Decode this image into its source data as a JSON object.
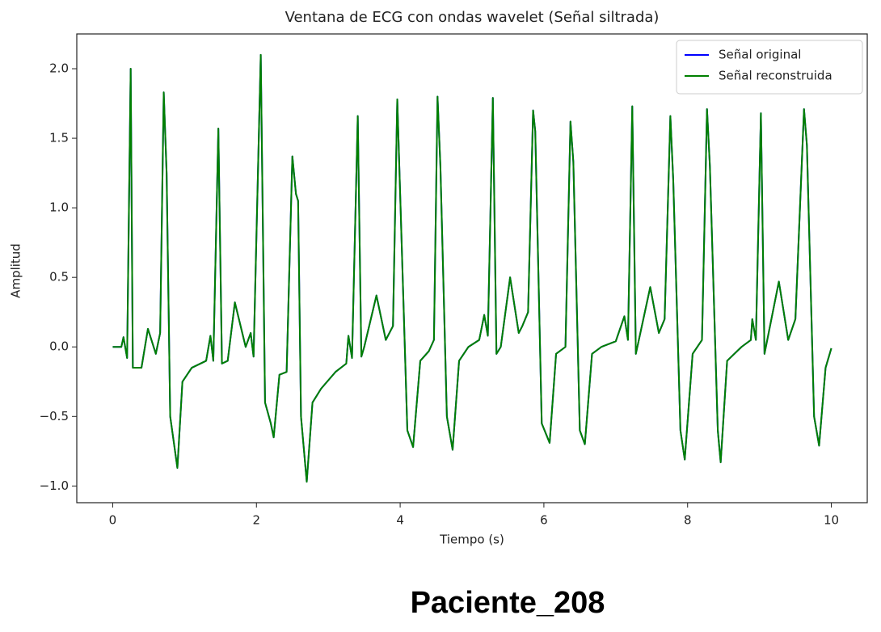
{
  "chart_data": {
    "type": "line",
    "title": "Ventana de ECG con ondas wavelet (Señal siltrada)",
    "xlabel": "Tiempo (s)",
    "ylabel": "Amplitud",
    "caption": "Paciente_208",
    "x": [
      0,
      0.12,
      0.15,
      0.2,
      0.25,
      0.28,
      0.4,
      0.49,
      0.6,
      0.66,
      0.71,
      0.75,
      0.8,
      0.9,
      0.97,
      1.1,
      1.3,
      1.36,
      1.4,
      1.47,
      1.52,
      1.6,
      1.7,
      1.85,
      1.92,
      1.96,
      2.06,
      2.12,
      2.2,
      2.24,
      2.32,
      2.42,
      2.5,
      2.55,
      2.58,
      2.62,
      2.7,
      2.78,
      2.9,
      3.1,
      3.25,
      3.28,
      3.33,
      3.41,
      3.46,
      3.5,
      3.67,
      3.8,
      3.9,
      3.96,
      4.0,
      4.1,
      4.18,
      4.28,
      4.4,
      4.47,
      4.52,
      4.56,
      4.65,
      4.73,
      4.82,
      4.95,
      5.1,
      5.17,
      5.22,
      5.29,
      5.34,
      5.4,
      5.53,
      5.65,
      5.7,
      5.78,
      5.85,
      5.88,
      5.97,
      6.08,
      6.17,
      6.3,
      6.37,
      6.41,
      6.5,
      6.57,
      6.67,
      6.8,
      7.0,
      7.12,
      7.17,
      7.23,
      7.28,
      7.48,
      7.6,
      7.68,
      7.76,
      7.8,
      7.9,
      7.96,
      8.07,
      8.2,
      8.27,
      8.31,
      8.42,
      8.46,
      8.55,
      8.75,
      8.88,
      8.9,
      8.95,
      9.02,
      9.07,
      9.27,
      9.4,
      9.5,
      9.62,
      9.66,
      9.76,
      9.83,
      9.92,
      10.0
    ],
    "series": [
      {
        "name": "Señal original",
        "color": "#0000ff",
        "values": [
          0,
          0,
          0.07,
          -0.08,
          2.0,
          -0.15,
          -0.15,
          0.13,
          -0.05,
          0.1,
          1.83,
          1.25,
          -0.5,
          -0.87,
          -0.25,
          -0.15,
          -0.1,
          0.08,
          -0.1,
          1.57,
          -0.12,
          -0.1,
          0.32,
          0.0,
          0.1,
          -0.07,
          2.1,
          -0.4,
          -0.55,
          -0.65,
          -0.2,
          -0.18,
          1.37,
          1.1,
          1.05,
          -0.5,
          -0.97,
          -0.4,
          -0.3,
          -0.18,
          -0.12,
          0.08,
          -0.08,
          1.66,
          -0.07,
          0.0,
          0.37,
          0.05,
          0.15,
          1.78,
          1.1,
          -0.6,
          -0.72,
          -0.1,
          -0.03,
          0.05,
          1.8,
          1.3,
          -0.5,
          -0.74,
          -0.1,
          0.0,
          0.05,
          0.23,
          0.08,
          1.79,
          -0.05,
          0.0,
          0.5,
          0.1,
          0.15,
          0.25,
          1.7,
          1.55,
          -0.55,
          -0.69,
          -0.05,
          0.0,
          1.62,
          1.33,
          -0.6,
          -0.7,
          -0.05,
          0.0,
          0.04,
          0.22,
          0.05,
          1.73,
          -0.05,
          0.43,
          0.1,
          0.2,
          1.66,
          1.2,
          -0.6,
          -0.81,
          -0.05,
          0.05,
          1.71,
          1.3,
          -0.6,
          -0.83,
          -0.1,
          0.0,
          0.05,
          0.2,
          0.05,
          1.68,
          -0.05,
          0.47,
          0.05,
          0.2,
          1.71,
          1.45,
          -0.5,
          -0.71,
          -0.15,
          -0.01
        ]
      },
      {
        "name": "Señal reconstruida",
        "color": "#008000",
        "values": [
          0,
          0,
          0.07,
          -0.08,
          2.0,
          -0.15,
          -0.15,
          0.13,
          -0.05,
          0.1,
          1.83,
          1.25,
          -0.5,
          -0.87,
          -0.25,
          -0.15,
          -0.1,
          0.08,
          -0.1,
          1.57,
          -0.12,
          -0.1,
          0.32,
          0.0,
          0.1,
          -0.07,
          2.1,
          -0.4,
          -0.55,
          -0.65,
          -0.2,
          -0.18,
          1.37,
          1.1,
          1.05,
          -0.5,
          -0.97,
          -0.4,
          -0.3,
          -0.18,
          -0.12,
          0.08,
          -0.08,
          1.66,
          -0.07,
          0.0,
          0.37,
          0.05,
          0.15,
          1.78,
          1.1,
          -0.6,
          -0.72,
          -0.1,
          -0.03,
          0.05,
          1.8,
          1.3,
          -0.5,
          -0.74,
          -0.1,
          0.0,
          0.05,
          0.23,
          0.08,
          1.79,
          -0.05,
          0.0,
          0.5,
          0.1,
          0.15,
          0.25,
          1.7,
          1.55,
          -0.55,
          -0.69,
          -0.05,
          0.0,
          1.62,
          1.33,
          -0.6,
          -0.7,
          -0.05,
          0.0,
          0.04,
          0.22,
          0.05,
          1.73,
          -0.05,
          0.43,
          0.1,
          0.2,
          1.66,
          1.2,
          -0.6,
          -0.81,
          -0.05,
          0.05,
          1.71,
          1.3,
          -0.6,
          -0.83,
          -0.1,
          0.0,
          0.05,
          0.2,
          0.05,
          1.68,
          -0.05,
          0.47,
          0.05,
          0.2,
          1.71,
          1.45,
          -0.5,
          -0.71,
          -0.15,
          -0.01
        ]
      }
    ],
    "xlim": [
      -0.5,
      10.5
    ],
    "ylim": [
      -1.12,
      2.25
    ],
    "xticks": [
      0,
      2,
      4,
      6,
      8,
      10
    ],
    "yticks": [
      {
        "value": -1.0,
        "label": "−1.0"
      },
      {
        "value": -0.5,
        "label": "−0.5"
      },
      {
        "value": 0.0,
        "label": "0.0"
      },
      {
        "value": 0.5,
        "label": "0.5"
      },
      {
        "value": 1.0,
        "label": "1.0"
      },
      {
        "value": 1.5,
        "label": "1.5"
      },
      {
        "value": 2.0,
        "label": "2.0"
      }
    ],
    "grid": false,
    "legend": "upper right"
  }
}
